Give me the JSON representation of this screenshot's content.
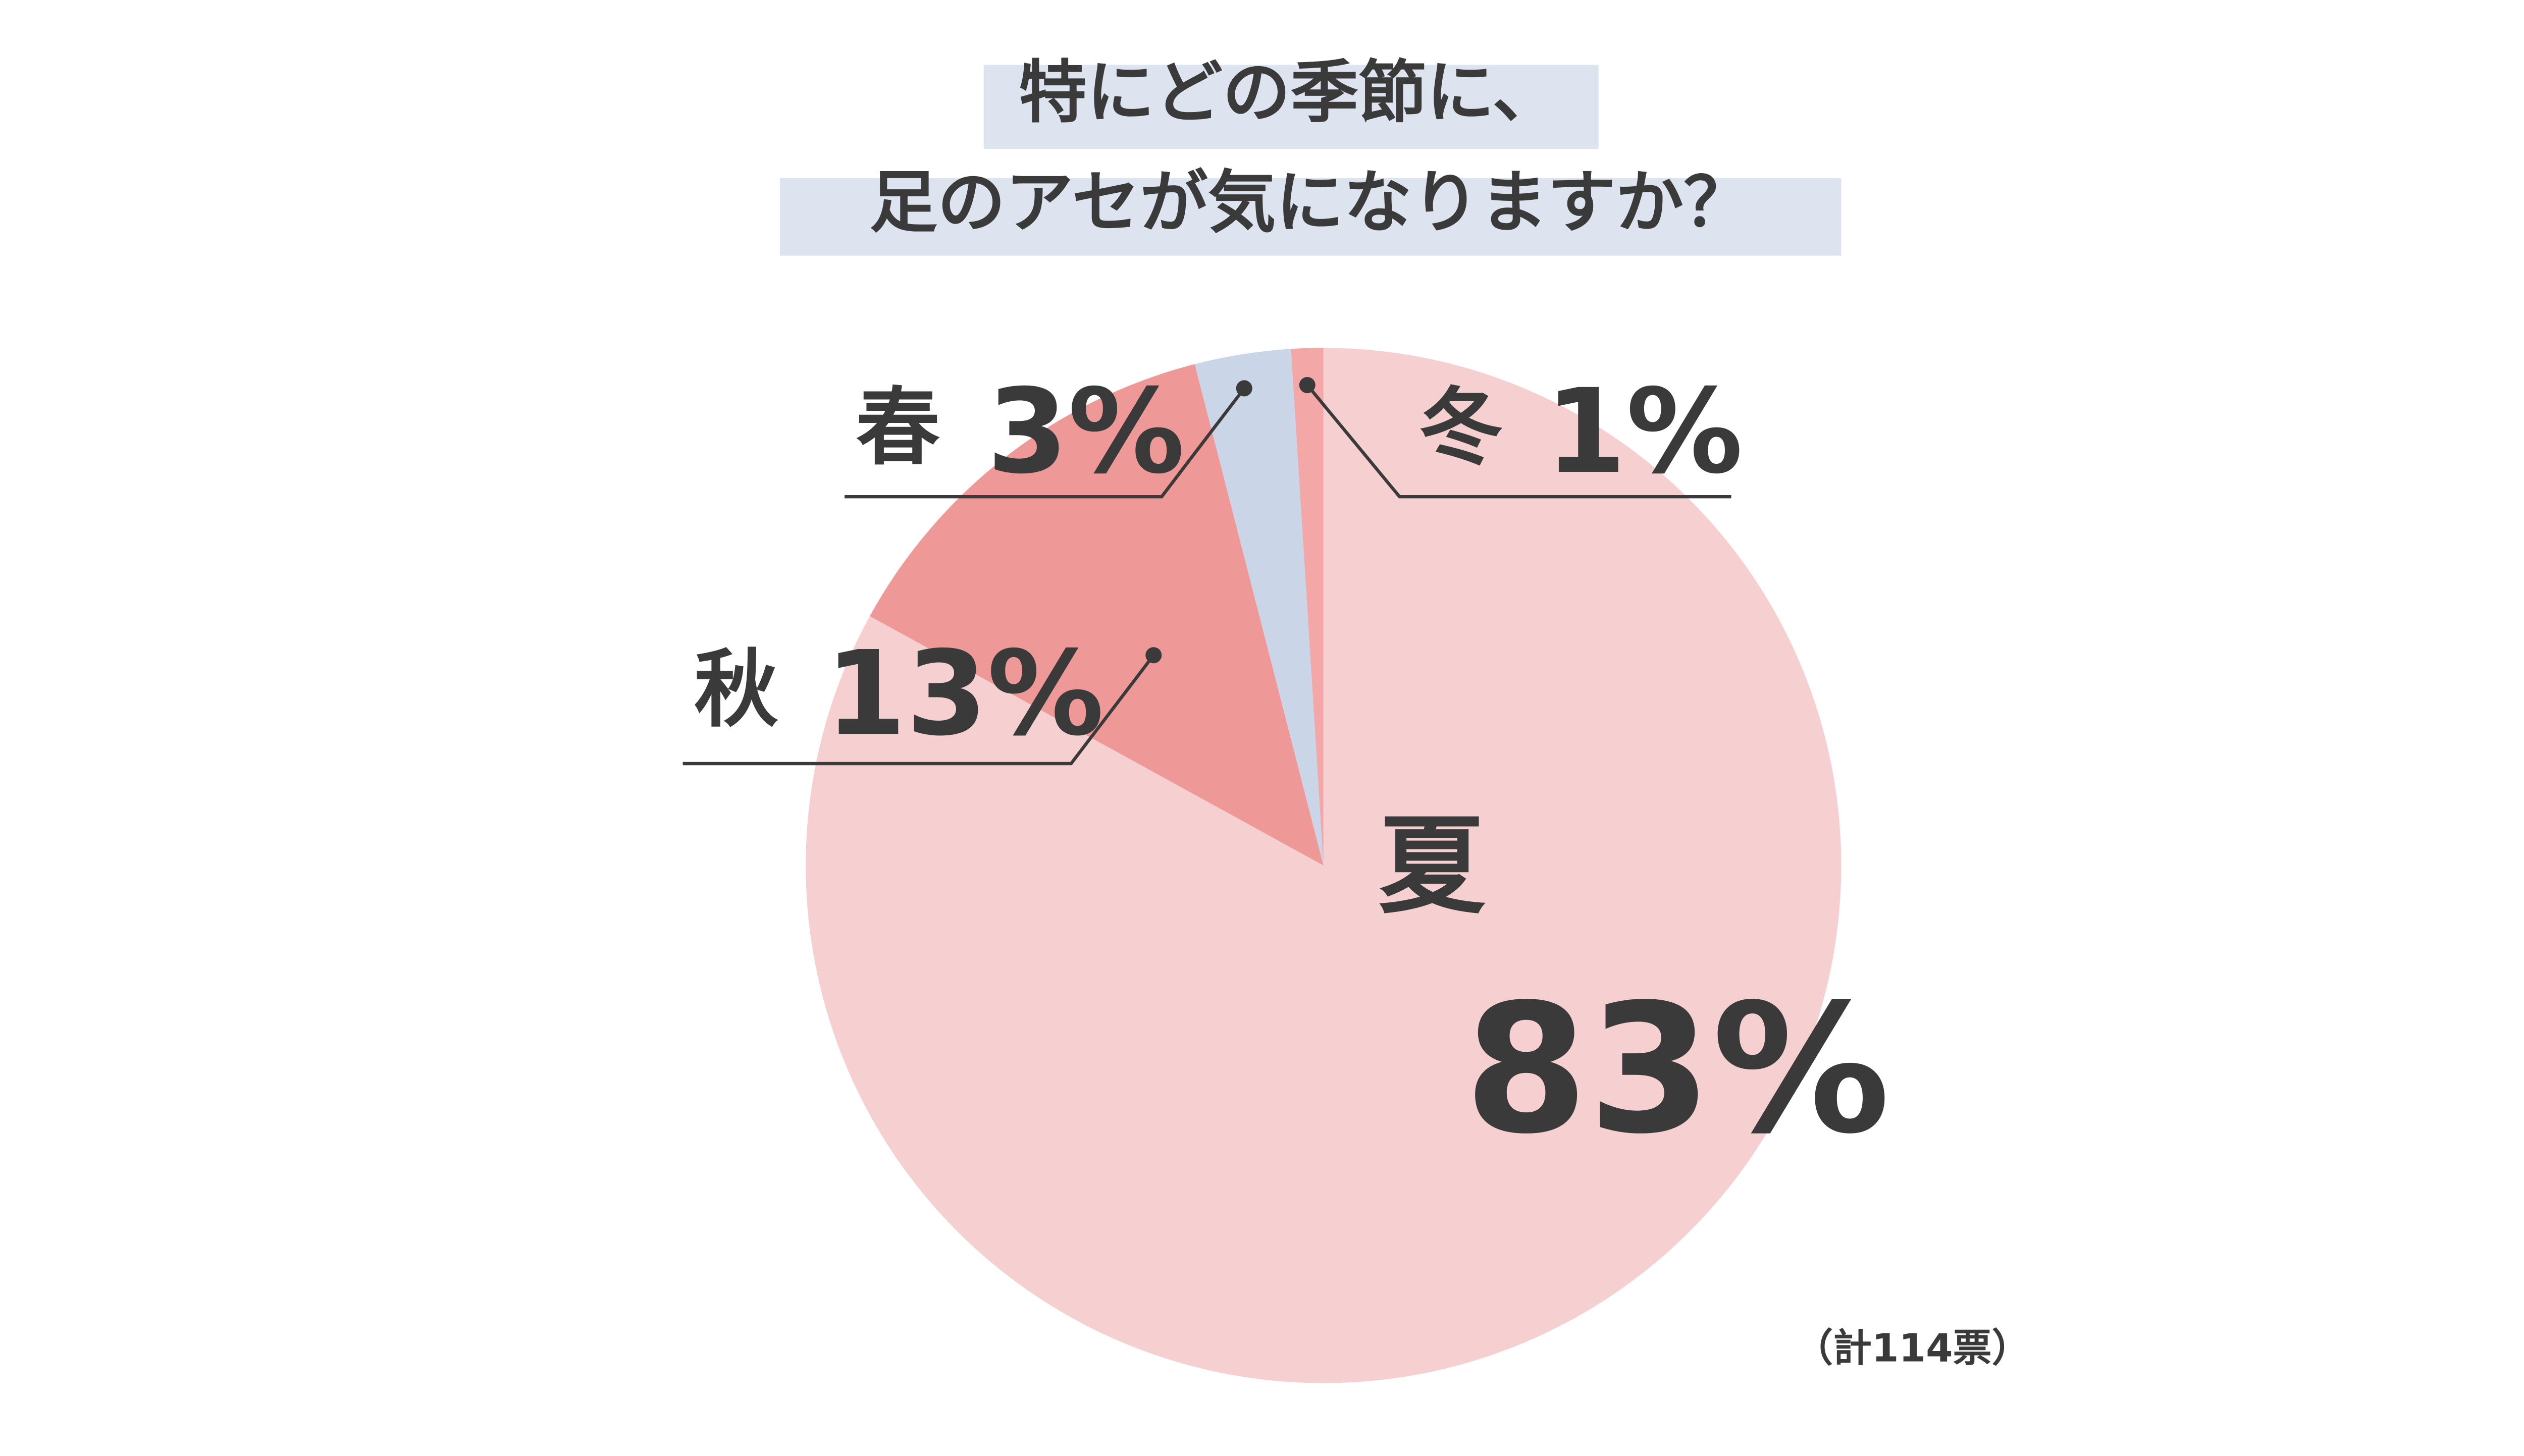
{
  "chart_data": {
    "type": "pie",
    "title": [
      "特にどの季節に、",
      "足のアセが気になりますか？"
    ],
    "categories": [
      "夏",
      "秋",
      "春",
      "冬"
    ],
    "values": [
      83,
      13,
      3,
      1
    ],
    "value_labels": [
      "83%",
      "13%",
      "3%",
      "1%"
    ],
    "colors": [
      "#f6d0d0",
      "#ef9898",
      "#cad6e7",
      "#f3a7a7"
    ],
    "note": "（計114票）"
  }
}
